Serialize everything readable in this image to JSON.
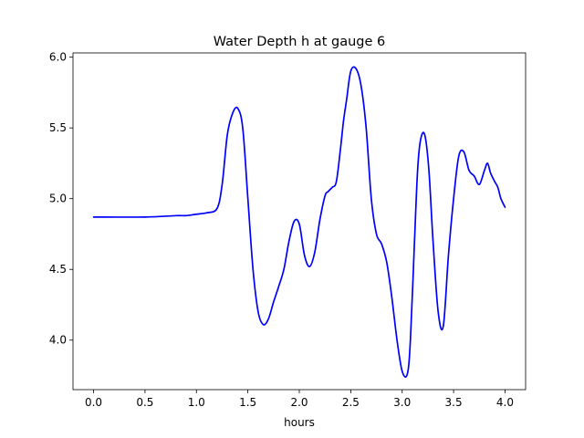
{
  "chart_data": {
    "type": "line",
    "title": "Water Depth h at gauge 6",
    "xlabel": "hours",
    "ylabel": "",
    "xlim": [
      -0.2,
      4.2
    ],
    "ylim": [
      3.65,
      6.03
    ],
    "grid": false,
    "x_ticks": [
      0.0,
      0.5,
      1.0,
      1.5,
      2.0,
      2.5,
      3.0,
      3.5,
      4.0
    ],
    "x_tick_labels": [
      "0.0",
      "0.5",
      "1.0",
      "1.5",
      "2.0",
      "2.5",
      "3.0",
      "3.5",
      "4.0"
    ],
    "y_ticks": [
      4.0,
      4.5,
      5.0,
      5.5,
      6.0
    ],
    "y_tick_labels": [
      "4.0",
      "4.5",
      "5.0",
      "5.5",
      "6.0"
    ],
    "series": [
      {
        "color": "#0000ff",
        "x": [
          0.0,
          0.5,
          0.8,
          0.9,
          1.0,
          1.1,
          1.2,
          1.25,
          1.3,
          1.35,
          1.4,
          1.45,
          1.5,
          1.55,
          1.6,
          1.65,
          1.7,
          1.75,
          1.8,
          1.85,
          1.9,
          1.95,
          2.0,
          2.05,
          2.1,
          2.15,
          2.2,
          2.25,
          2.28,
          2.32,
          2.36,
          2.4,
          2.43,
          2.46,
          2.5,
          2.55,
          2.6,
          2.65,
          2.7,
          2.75,
          2.8,
          2.85,
          2.9,
          2.95,
          3.0,
          3.05,
          3.08,
          3.12,
          3.15,
          3.18,
          3.22,
          3.26,
          3.3,
          3.35,
          3.4,
          3.45,
          3.5,
          3.55,
          3.6,
          3.65,
          3.7,
          3.75,
          3.8,
          3.83,
          3.86,
          3.9,
          3.93,
          3.96,
          4.0
        ],
        "y": [
          4.87,
          4.87,
          4.88,
          4.88,
          4.89,
          4.9,
          4.93,
          5.1,
          5.45,
          5.6,
          5.64,
          5.5,
          5.0,
          4.5,
          4.2,
          4.11,
          4.15,
          4.27,
          4.38,
          4.5,
          4.7,
          4.84,
          4.82,
          4.6,
          4.52,
          4.62,
          4.85,
          5.02,
          5.05,
          5.08,
          5.12,
          5.35,
          5.55,
          5.7,
          5.9,
          5.92,
          5.8,
          5.5,
          5.0,
          4.75,
          4.68,
          4.55,
          4.3,
          4.0,
          3.78,
          3.76,
          4.0,
          4.7,
          5.2,
          5.42,
          5.45,
          5.2,
          4.7,
          4.2,
          4.1,
          4.6,
          5.0,
          5.3,
          5.33,
          5.2,
          5.16,
          5.1,
          5.2,
          5.25,
          5.18,
          5.12,
          5.08,
          5.0,
          4.94
        ]
      }
    ]
  }
}
